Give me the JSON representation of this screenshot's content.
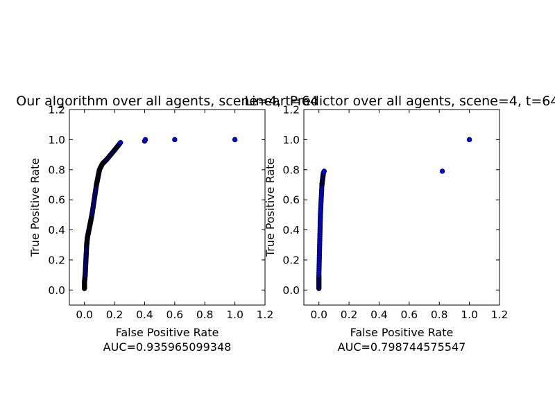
{
  "chart_data": [
    {
      "type": "scatter",
      "title": "Our algorithm over all agents, scene=4,  t=64",
      "xlabel": "False Positive Rate",
      "subcaption": "AUC=0.935965099348",
      "ylabel": "True Positive Rate",
      "xlim": [
        -0.1,
        1.2
      ],
      "ylim": [
        -0.1,
        1.2
      ],
      "xticks": [
        "0.0",
        "0.2",
        "0.4",
        "0.6",
        "0.8",
        "1.0",
        "1.2"
      ],
      "yticks": [
        "0.0",
        "0.2",
        "0.4",
        "0.6",
        "0.8",
        "1.0",
        "1.2"
      ],
      "grid": false,
      "marker_color": "#0000ff",
      "curve": [
        [
          0.0,
          0.01
        ],
        [
          0.0,
          0.05
        ],
        [
          0.005,
          0.1
        ],
        [
          0.01,
          0.2
        ],
        [
          0.015,
          0.3
        ],
        [
          0.02,
          0.35
        ],
        [
          0.03,
          0.4
        ],
        [
          0.04,
          0.45
        ],
        [
          0.05,
          0.5
        ],
        [
          0.065,
          0.6
        ],
        [
          0.08,
          0.7
        ],
        [
          0.09,
          0.75
        ],
        [
          0.1,
          0.8
        ],
        [
          0.12,
          0.84
        ],
        [
          0.15,
          0.87
        ],
        [
          0.2,
          0.93
        ],
        [
          0.24,
          0.98
        ]
      ],
      "points": [
        {
          "x": 0.4,
          "y": 0.99
        },
        {
          "x": 0.405,
          "y": 1.0
        },
        {
          "x": 0.6,
          "y": 1.0
        },
        {
          "x": 1.0,
          "y": 1.0
        }
      ]
    },
    {
      "type": "scatter",
      "title": "Linear Predictor over all agents, scene=4,  t=64",
      "xlabel": "False Positive Rate",
      "subcaption": "AUC=0.798744575547",
      "ylabel": "True Positive Rate",
      "xlim": [
        -0.1,
        1.2
      ],
      "ylim": [
        -0.1,
        1.2
      ],
      "xticks": [
        "0.0",
        "0.2",
        "0.4",
        "0.6",
        "0.8",
        "1.0",
        "1.2"
      ],
      "yticks": [
        "0.0",
        "0.2",
        "0.4",
        "0.6",
        "0.8",
        "1.0",
        "1.2"
      ],
      "grid": false,
      "marker_color": "#0000ff",
      "curve": [
        [
          0.0,
          0.01
        ],
        [
          0.0,
          0.1
        ],
        [
          0.005,
          0.3
        ],
        [
          0.01,
          0.5
        ],
        [
          0.02,
          0.7
        ],
        [
          0.03,
          0.78
        ]
      ],
      "points": [
        {
          "x": 0.035,
          "y": 0.79
        },
        {
          "x": 0.82,
          "y": 0.79
        },
        {
          "x": 1.0,
          "y": 1.0
        }
      ]
    }
  ]
}
